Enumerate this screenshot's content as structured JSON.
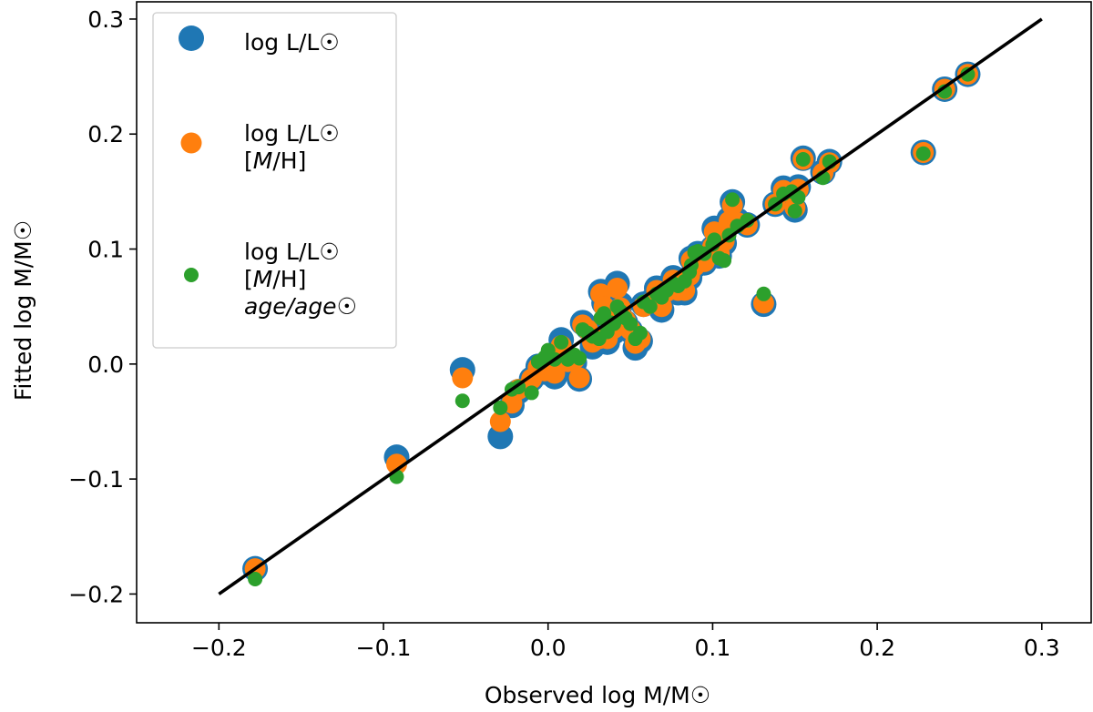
{
  "chart_data": {
    "type": "scatter",
    "title": "",
    "xlabel": "Observed log M/M☉",
    "ylabel": "Fitted log M/M☉",
    "xlim": [
      -0.25,
      0.33
    ],
    "ylim": [
      -0.225,
      0.315
    ],
    "xticks": [
      -0.2,
      -0.1,
      0.0,
      0.1,
      0.2,
      0.3
    ],
    "xtick_labels": [
      "−0.2",
      "−0.1",
      "0.0",
      "0.1",
      "0.2",
      "0.3"
    ],
    "yticks": [
      -0.2,
      -0.1,
      0.0,
      0.1,
      0.2,
      0.3
    ],
    "ytick_labels": [
      "−0.2",
      "−0.1",
      "0.0",
      "0.1",
      "0.2",
      "0.3"
    ],
    "grid": false,
    "legend_position": "upper-left",
    "reference_line": {
      "name": "one-to-one",
      "color": "#000000",
      "points": [
        [
          -0.2,
          -0.2
        ],
        [
          0.3,
          0.3
        ]
      ]
    },
    "series": [
      {
        "name": "log L/L☉",
        "legend_lines": [
          "log L/L☉"
        ],
        "color": "#1f77b4",
        "marker_size": "large",
        "points": [
          [
            -0.178,
            -0.178
          ],
          [
            -0.092,
            -0.081
          ],
          [
            -0.052,
            -0.005
          ],
          [
            -0.029,
            -0.063
          ],
          [
            -0.022,
            -0.036
          ],
          [
            -0.018,
            -0.024
          ],
          [
            -0.01,
            -0.013
          ],
          [
            -0.006,
            -0.002
          ],
          [
            -0.002,
            -0.007
          ],
          [
            0.0,
            -0.001
          ],
          [
            0.004,
            -0.011
          ],
          [
            0.008,
            0.021
          ],
          [
            0.012,
            -0.002
          ],
          [
            0.016,
            0.001
          ],
          [
            0.019,
            -0.013
          ],
          [
            0.021,
            0.036
          ],
          [
            0.024,
            0.032
          ],
          [
            0.027,
            0.015
          ],
          [
            0.031,
            0.02
          ],
          [
            0.032,
            0.063
          ],
          [
            0.034,
            0.053
          ],
          [
            0.036,
            0.019
          ],
          [
            0.038,
            0.046
          ],
          [
            0.04,
            0.028
          ],
          [
            0.042,
            0.07
          ],
          [
            0.044,
            0.052
          ],
          [
            0.047,
            0.036
          ],
          [
            0.05,
            0.029
          ],
          [
            0.053,
            0.014
          ],
          [
            0.056,
            0.02
          ],
          [
            0.058,
            0.052
          ],
          [
            0.062,
            0.054
          ],
          [
            0.066,
            0.066
          ],
          [
            0.069,
            0.047
          ],
          [
            0.072,
            0.062
          ],
          [
            0.076,
            0.075
          ],
          [
            0.079,
            0.062
          ],
          [
            0.083,
            0.062
          ],
          [
            0.086,
            0.075
          ],
          [
            0.087,
            0.092
          ],
          [
            0.089,
            0.085
          ],
          [
            0.091,
            0.096
          ],
          [
            0.095,
            0.088
          ],
          [
            0.1,
            0.101
          ],
          [
            0.101,
            0.118
          ],
          [
            0.104,
            0.094
          ],
          [
            0.107,
            0.105
          ],
          [
            0.11,
            0.126
          ],
          [
            0.112,
            0.141
          ],
          [
            0.115,
            0.125
          ],
          [
            0.121,
            0.121
          ],
          [
            0.138,
            0.139
          ],
          [
            0.143,
            0.153
          ],
          [
            0.148,
            0.149
          ],
          [
            0.15,
            0.134
          ],
          [
            0.152,
            0.154
          ],
          [
            0.155,
            0.179
          ],
          [
            0.167,
            0.167
          ],
          [
            0.171,
            0.176
          ],
          [
            0.228,
            0.184
          ],
          [
            0.241,
            0.239
          ],
          [
            0.255,
            0.252
          ],
          [
            0.131,
            0.052
          ]
        ]
      },
      {
        "name": "log L/L☉ [M/H]",
        "legend_lines": [
          "log L/L☉",
          "[M/H]"
        ],
        "color": "#ff7f0e",
        "marker_size": "medium",
        "points": [
          [
            -0.178,
            -0.178
          ],
          [
            -0.092,
            -0.087
          ],
          [
            -0.052,
            -0.012
          ],
          [
            -0.029,
            -0.05
          ],
          [
            -0.022,
            -0.034
          ],
          [
            -0.018,
            -0.022
          ],
          [
            -0.01,
            -0.013
          ],
          [
            -0.006,
            -0.003
          ],
          [
            -0.002,
            -0.006
          ],
          [
            0.0,
            -0.001
          ],
          [
            0.004,
            -0.008
          ],
          [
            0.008,
            0.016
          ],
          [
            0.012,
            0.002
          ],
          [
            0.016,
            0.004
          ],
          [
            0.019,
            -0.012
          ],
          [
            0.021,
            0.034
          ],
          [
            0.024,
            0.03
          ],
          [
            0.027,
            0.019
          ],
          [
            0.031,
            0.022
          ],
          [
            0.032,
            0.061
          ],
          [
            0.034,
            0.05
          ],
          [
            0.036,
            0.022
          ],
          [
            0.038,
            0.043
          ],
          [
            0.04,
            0.031
          ],
          [
            0.042,
            0.066
          ],
          [
            0.044,
            0.049
          ],
          [
            0.047,
            0.038
          ],
          [
            0.05,
            0.03
          ],
          [
            0.053,
            0.018
          ],
          [
            0.056,
            0.022
          ],
          [
            0.058,
            0.05
          ],
          [
            0.062,
            0.053
          ],
          [
            0.066,
            0.064
          ],
          [
            0.069,
            0.05
          ],
          [
            0.072,
            0.063
          ],
          [
            0.076,
            0.073
          ],
          [
            0.079,
            0.064
          ],
          [
            0.083,
            0.064
          ],
          [
            0.086,
            0.077
          ],
          [
            0.087,
            0.09
          ],
          [
            0.089,
            0.085
          ],
          [
            0.091,
            0.094
          ],
          [
            0.095,
            0.089
          ],
          [
            0.1,
            0.102
          ],
          [
            0.101,
            0.115
          ],
          [
            0.104,
            0.096
          ],
          [
            0.107,
            0.107
          ],
          [
            0.11,
            0.124
          ],
          [
            0.112,
            0.138
          ],
          [
            0.115,
            0.123
          ],
          [
            0.121,
            0.121
          ],
          [
            0.138,
            0.139
          ],
          [
            0.143,
            0.151
          ],
          [
            0.148,
            0.148
          ],
          [
            0.15,
            0.136
          ],
          [
            0.152,
            0.152
          ],
          [
            0.155,
            0.178
          ],
          [
            0.167,
            0.166
          ],
          [
            0.171,
            0.175
          ],
          [
            0.228,
            0.184
          ],
          [
            0.241,
            0.239
          ],
          [
            0.255,
            0.252
          ],
          [
            0.131,
            0.053
          ]
        ]
      },
      {
        "name": "log L/L☉ [M/H] age/age☉",
        "legend_lines": [
          "log L/L☉",
          "[M/H]",
          "age/age☉"
        ],
        "color": "#2ca02c",
        "marker_size": "small",
        "points": [
          [
            -0.178,
            -0.187
          ],
          [
            -0.092,
            -0.098
          ],
          [
            -0.052,
            -0.032
          ],
          [
            -0.029,
            -0.038
          ],
          [
            -0.022,
            -0.022
          ],
          [
            -0.018,
            -0.02
          ],
          [
            -0.01,
            -0.025
          ],
          [
            -0.006,
            0.002
          ],
          [
            -0.002,
            0.006
          ],
          [
            0.0,
            0.012
          ],
          [
            0.004,
            0.004
          ],
          [
            0.008,
            0.019
          ],
          [
            0.012,
            0.004
          ],
          [
            0.016,
            0.008
          ],
          [
            0.019,
            0.005
          ],
          [
            0.021,
            0.03
          ],
          [
            0.024,
            0.027
          ],
          [
            0.027,
            0.024
          ],
          [
            0.031,
            0.022
          ],
          [
            0.032,
            0.04
          ],
          [
            0.034,
            0.044
          ],
          [
            0.036,
            0.028
          ],
          [
            0.038,
            0.036
          ],
          [
            0.04,
            0.035
          ],
          [
            0.042,
            0.05
          ],
          [
            0.044,
            0.046
          ],
          [
            0.047,
            0.04
          ],
          [
            0.05,
            0.035
          ],
          [
            0.053,
            0.022
          ],
          [
            0.056,
            0.027
          ],
          [
            0.058,
            0.054
          ],
          [
            0.062,
            0.05
          ],
          [
            0.066,
            0.061
          ],
          [
            0.069,
            0.058
          ],
          [
            0.072,
            0.064
          ],
          [
            0.076,
            0.07
          ],
          [
            0.079,
            0.068
          ],
          [
            0.083,
            0.072
          ],
          [
            0.086,
            0.08
          ],
          [
            0.087,
            0.086
          ],
          [
            0.089,
            0.097
          ],
          [
            0.091,
            0.098
          ],
          [
            0.095,
            0.096
          ],
          [
            0.1,
            0.104
          ],
          [
            0.101,
            0.108
          ],
          [
            0.104,
            0.092
          ],
          [
            0.107,
            0.09
          ],
          [
            0.11,
            0.112
          ],
          [
            0.112,
            0.143
          ],
          [
            0.115,
            0.12
          ],
          [
            0.121,
            0.125
          ],
          [
            0.138,
            0.139
          ],
          [
            0.143,
            0.148
          ],
          [
            0.148,
            0.15
          ],
          [
            0.15,
            0.133
          ],
          [
            0.152,
            0.145
          ],
          [
            0.155,
            0.178
          ],
          [
            0.167,
            0.162
          ],
          [
            0.171,
            0.176
          ],
          [
            0.228,
            0.183
          ],
          [
            0.241,
            0.237
          ],
          [
            0.255,
            0.252
          ],
          [
            0.131,
            0.061
          ]
        ]
      }
    ]
  }
}
